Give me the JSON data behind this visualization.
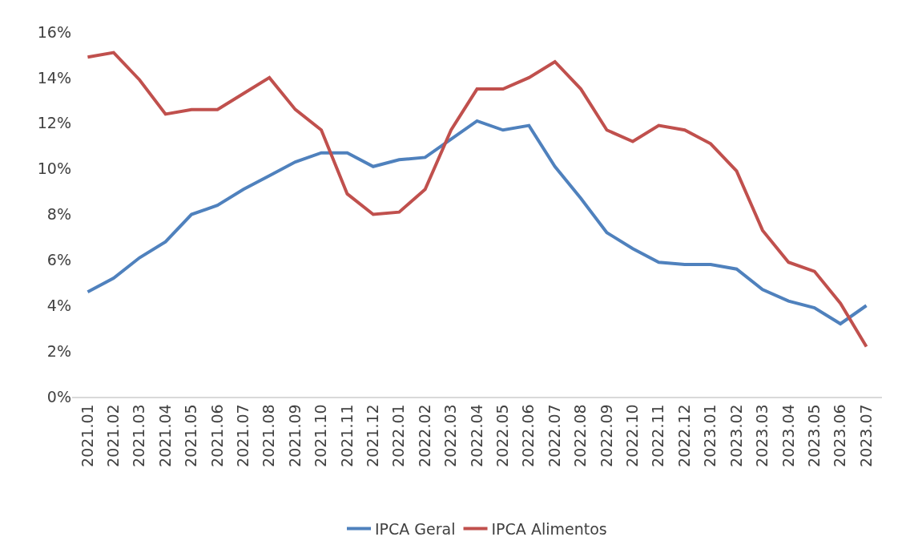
{
  "chart_data": {
    "type": "line",
    "categories": [
      "2021.01",
      "2021.02",
      "2021.03",
      "2021.04",
      "2021.05",
      "2021.06",
      "2021.07",
      "2021.08",
      "2021.09",
      "2021.10",
      "2021.11",
      "2021.12",
      "2022.01",
      "2022.02",
      "2022.03",
      "2022.04",
      "2022.05",
      "2022.06",
      "2022.07",
      "2022.08",
      "2022.09",
      "2022.10",
      "2022.11",
      "2022.12",
      "2023.01",
      "2023.02",
      "2023.03",
      "2023.04",
      "2023.05",
      "2023.06",
      "2023.07"
    ],
    "series": [
      {
        "name": "IPCA Geral",
        "color": "#4f81bd",
        "values": [
          4.6,
          5.2,
          6.1,
          6.8,
          8.0,
          8.4,
          9.1,
          9.7,
          10.3,
          10.7,
          10.7,
          10.1,
          10.4,
          10.5,
          11.3,
          12.1,
          11.7,
          11.9,
          10.1,
          8.7,
          7.2,
          6.5,
          5.9,
          5.8,
          5.8,
          5.6,
          4.7,
          4.2,
          3.9,
          3.2,
          4.0
        ]
      },
      {
        "name": "IPCA Alimentos",
        "color": "#c0504d",
        "values": [
          14.9,
          15.1,
          13.9,
          12.4,
          12.6,
          12.6,
          13.3,
          14.0,
          12.6,
          11.7,
          8.9,
          8.0,
          8.1,
          9.1,
          11.7,
          13.5,
          13.5,
          14.0,
          14.7,
          13.5,
          11.7,
          11.2,
          11.9,
          11.7,
          11.1,
          9.9,
          7.3,
          5.9,
          5.5,
          4.1,
          2.2
        ]
      }
    ],
    "ylim": [
      0,
      16
    ],
    "yticks": [
      {
        "value": 0,
        "label": "0%"
      },
      {
        "value": 2,
        "label": "2%"
      },
      {
        "value": 4,
        "label": "4%"
      },
      {
        "value": 6,
        "label": "6%"
      },
      {
        "value": 8,
        "label": "8%"
      },
      {
        "value": 10,
        "label": "10%"
      },
      {
        "value": 12,
        "label": "12%"
      },
      {
        "value": 14,
        "label": "14%"
      },
      {
        "value": 16,
        "label": "16%"
      }
    ],
    "grid": false,
    "legend": "bottom",
    "marker": "none",
    "line_style": "solid"
  }
}
